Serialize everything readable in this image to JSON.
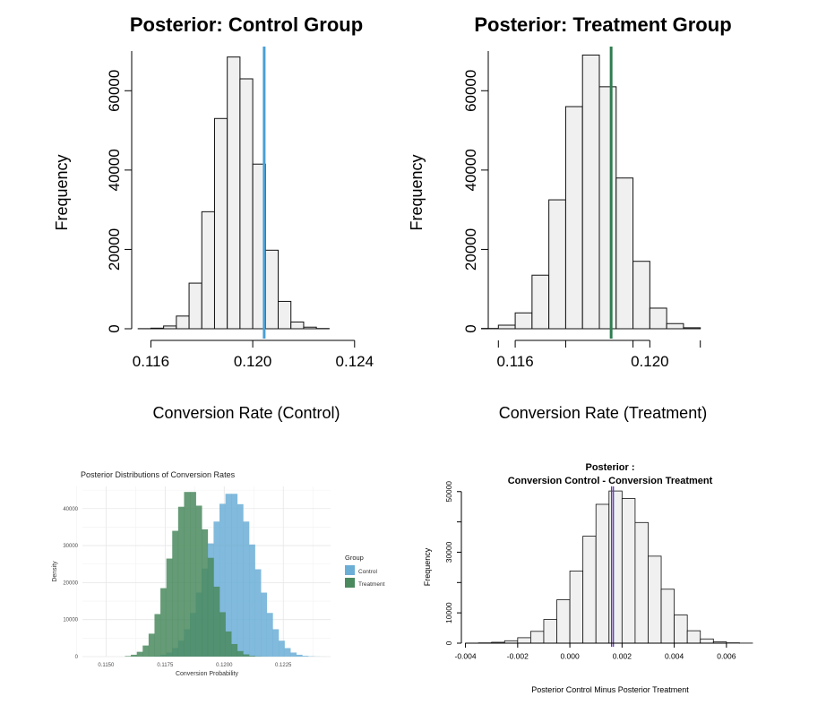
{
  "chart_data": [
    {
      "type": "bar",
      "subtype": "histogram",
      "title": "Posterior: Control Group",
      "xlabel": "Conversion Rate (Control)",
      "ylabel": "Frequency",
      "xlim": [
        0.115,
        0.1245
      ],
      "ylim": [
        0,
        70000
      ],
      "xticks": [
        "0.116",
        "0.120",
        "0.124"
      ],
      "yticks": [
        "0",
        "20000",
        "40000",
        "60000"
      ],
      "bin_start": 0.1155,
      "bin_width": 0.0005,
      "counts": [
        30,
        150,
        700,
        3200,
        11500,
        29500,
        53000,
        68500,
        63000,
        41500,
        19800,
        6900,
        1700,
        400,
        60
      ],
      "vline": 0.12045,
      "vline_color": "#4a9fd5",
      "bar_fill": "#f0f0f0"
    },
    {
      "type": "bar",
      "subtype": "histogram",
      "title": "Posterior: Treatment Group",
      "xlabel": "Conversion Rate (Treatment)",
      "ylabel": "Frequency",
      "xlim": [
        0.1148,
        0.1222
      ],
      "ylim": [
        0,
        70000
      ],
      "xticks": [
        "0.116",
        "0.120"
      ],
      "yticks": [
        "0",
        "20000",
        "40000",
        "60000"
      ],
      "bin_start": 0.115,
      "bin_width": 0.0005,
      "counts": [
        80,
        900,
        4000,
        13500,
        32500,
        56000,
        69000,
        61000,
        38000,
        17000,
        5200,
        1300,
        250
      ],
      "vline": 0.11885,
      "vline_color": "#2e7d4f",
      "bar_fill": "#f0f0f0"
    },
    {
      "type": "area",
      "subtype": "overlaid-histogram",
      "title": "Posterior Distributions of Conversion Rates",
      "xlabel": "Conversion Probability",
      "ylabel": "Density",
      "xlim": [
        0.114,
        0.1245
      ],
      "ylim": [
        0,
        46000
      ],
      "xticks": [
        "0.1150",
        "0.1175",
        "0.1200",
        "0.1225"
      ],
      "yticks": [
        "0",
        "10000",
        "20000",
        "30000",
        "40000"
      ],
      "legend": {
        "title": "Group",
        "position": "right",
        "entries": [
          "Control",
          "Treatment"
        ]
      },
      "bin_start": 0.1158,
      "bin_width": 0.00025,
      "series": [
        {
          "name": "Control",
          "color": "#6baed6",
          "counts": [
            0,
            0,
            10,
            30,
            80,
            200,
            500,
            1100,
            2300,
            4300,
            7400,
            11800,
            17300,
            23800,
            30600,
            36500,
            41300,
            44000,
            44000,
            41200,
            36500,
            30300,
            23600,
            17300,
            11800,
            7400,
            4300,
            2300,
            1100,
            500,
            200,
            80,
            30,
            10,
            0,
            0
          ]
        },
        {
          "name": "Treatment",
          "color": "#4a8a5e",
          "counts": [
            150,
            500,
            1300,
            3000,
            6200,
            11500,
            18500,
            26500,
            34000,
            40500,
            44500,
            44500,
            40800,
            34400,
            26700,
            18900,
            12000,
            6800,
            3400,
            1500,
            600,
            200,
            60,
            15,
            0,
            0,
            0,
            0,
            0,
            0,
            0,
            0,
            0,
            0,
            0,
            0
          ]
        }
      ]
    },
    {
      "type": "bar",
      "subtype": "histogram",
      "title": "Posterior :\nConversion Control - Conversion Treatment",
      "title_lines": [
        "Posterior :",
        "Conversion Control - Conversion Treatment"
      ],
      "xlabel": "Posterior Control Minus Posterior Treatment",
      "ylabel": "Frequency",
      "xlim": [
        -0.0045,
        0.007
      ],
      "ylim": [
        0,
        52000
      ],
      "xticks": [
        "-0.004",
        "-0.002",
        "0.000",
        "0.002",
        "0.004",
        "0.006"
      ],
      "yticks": [
        "0",
        "10000",
        "30000",
        "50000"
      ],
      "bin_start": -0.004,
      "bin_width": 0.0005,
      "counts": [
        30,
        100,
        300,
        800,
        1800,
        3900,
        7800,
        14300,
        23800,
        35300,
        45800,
        50200,
        47700,
        39800,
        28700,
        17800,
        9300,
        4100,
        1400,
        450,
        120,
        30
      ],
      "vline": 0.0016,
      "vline_colors": [
        "#7b1fa2",
        "#3f51b5"
      ],
      "bar_fill": "#f0f0f0"
    }
  ]
}
